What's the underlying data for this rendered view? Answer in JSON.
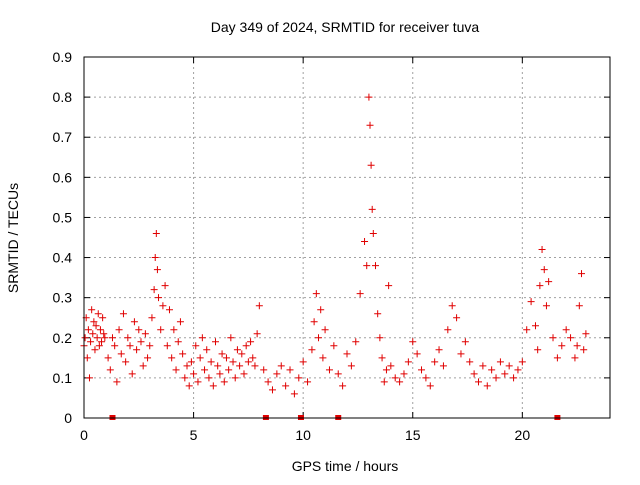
{
  "chart_data": {
    "type": "scatter",
    "title": "Day 349 of 2024, SRMTID for receiver tuva",
    "xlabel": "GPS time / hours",
    "ylabel": "SRMTID / TECUs",
    "xlim": [
      0,
      24
    ],
    "ylim": [
      0,
      0.9
    ],
    "xticks": [
      0,
      5,
      10,
      15,
      20
    ],
    "xtick_labels": [
      "0",
      "5",
      "10",
      "15",
      "20"
    ],
    "yticks": [
      0,
      0.1,
      0.2,
      0.3,
      0.4,
      0.5,
      0.6,
      0.7,
      0.8,
      0.9
    ],
    "ytick_labels": [
      "0",
      "0.1",
      "0.2",
      "0.3",
      "0.4",
      "0.5",
      "0.6",
      "0.7",
      "0.8",
      "0.9"
    ],
    "grid": true,
    "marker": "+",
    "color": "#e00000",
    "series": [
      {
        "name": "SRMTID",
        "x": [
          0.0,
          0.05,
          0.1,
          0.15,
          0.2,
          0.25,
          0.3,
          0.35,
          0.4,
          0.45,
          0.5,
          0.55,
          0.6,
          0.65,
          0.7,
          0.75,
          0.8,
          0.85,
          0.9,
          0.95,
          1.1,
          1.2,
          1.3,
          1.4,
          1.5,
          1.6,
          1.7,
          1.8,
          1.9,
          2.0,
          2.1,
          2.2,
          2.3,
          2.4,
          2.5,
          2.6,
          2.7,
          2.8,
          2.9,
          3.0,
          3.1,
          3.2,
          3.25,
          3.3,
          3.35,
          3.4,
          3.5,
          3.6,
          3.7,
          3.8,
          3.9,
          4.0,
          4.1,
          4.2,
          4.3,
          4.4,
          4.5,
          4.6,
          4.7,
          4.8,
          4.9,
          5.0,
          5.1,
          5.2,
          5.3,
          5.4,
          5.5,
          5.6,
          5.7,
          5.8,
          5.9,
          6.0,
          6.1,
          6.2,
          6.3,
          6.4,
          6.5,
          6.6,
          6.7,
          6.8,
          6.9,
          7.0,
          7.1,
          7.2,
          7.3,
          7.4,
          7.5,
          7.6,
          7.7,
          7.8,
          7.9,
          8.0,
          8.2,
          8.4,
          8.6,
          8.8,
          9.0,
          9.2,
          9.4,
          9.6,
          9.8,
          10.0,
          10.2,
          10.4,
          10.5,
          10.6,
          10.7,
          10.8,
          10.9,
          11.0,
          11.2,
          11.4,
          11.6,
          11.8,
          12.0,
          12.2,
          12.4,
          12.6,
          12.8,
          12.9,
          13.0,
          13.05,
          13.1,
          13.15,
          13.2,
          13.3,
          13.4,
          13.5,
          13.6,
          13.7,
          13.8,
          13.9,
          14.0,
          14.2,
          14.4,
          14.6,
          14.8,
          15.0,
          15.2,
          15.4,
          15.6,
          15.8,
          16.0,
          16.2,
          16.4,
          16.6,
          16.8,
          17.0,
          17.2,
          17.4,
          17.6,
          17.8,
          18.0,
          18.2,
          18.4,
          18.6,
          18.8,
          19.0,
          19.2,
          19.4,
          19.6,
          19.8,
          20.0,
          20.2,
          20.4,
          20.6,
          20.7,
          20.8,
          20.9,
          21.0,
          21.1,
          21.2,
          21.4,
          21.6,
          21.8,
          22.0,
          22.2,
          22.4,
          22.5,
          22.6,
          22.7,
          22.8,
          22.9
        ],
        "y": [
          0.18,
          0.2,
          0.25,
          0.15,
          0.22,
          0.1,
          0.19,
          0.27,
          0.21,
          0.24,
          0.17,
          0.23,
          0.2,
          0.26,
          0.18,
          0.22,
          0.19,
          0.25,
          0.21,
          0.2,
          0.15,
          0.12,
          0.2,
          0.18,
          0.09,
          0.22,
          0.16,
          0.26,
          0.14,
          0.2,
          0.18,
          0.11,
          0.24,
          0.17,
          0.22,
          0.19,
          0.13,
          0.21,
          0.15,
          0.18,
          0.25,
          0.32,
          0.4,
          0.46,
          0.37,
          0.3,
          0.22,
          0.28,
          0.33,
          0.18,
          0.27,
          0.15,
          0.22,
          0.12,
          0.19,
          0.24,
          0.16,
          0.1,
          0.13,
          0.08,
          0.14,
          0.11,
          0.18,
          0.09,
          0.15,
          0.2,
          0.12,
          0.17,
          0.1,
          0.14,
          0.08,
          0.19,
          0.13,
          0.11,
          0.16,
          0.09,
          0.15,
          0.12,
          0.2,
          0.14,
          0.1,
          0.17,
          0.13,
          0.16,
          0.11,
          0.18,
          0.14,
          0.19,
          0.15,
          0.13,
          0.21,
          0.28,
          0.12,
          0.09,
          0.07,
          0.11,
          0.13,
          0.08,
          0.12,
          0.06,
          0.1,
          0.14,
          0.09,
          0.17,
          0.24,
          0.31,
          0.2,
          0.27,
          0.15,
          0.22,
          0.12,
          0.18,
          0.11,
          0.08,
          0.16,
          0.13,
          0.19,
          0.31,
          0.44,
          0.38,
          0.8,
          0.73,
          0.63,
          0.52,
          0.46,
          0.38,
          0.26,
          0.2,
          0.15,
          0.09,
          0.12,
          0.33,
          0.13,
          0.1,
          0.09,
          0.11,
          0.14,
          0.19,
          0.16,
          0.12,
          0.1,
          0.08,
          0.14,
          0.17,
          0.13,
          0.22,
          0.28,
          0.25,
          0.16,
          0.19,
          0.14,
          0.11,
          0.09,
          0.13,
          0.08,
          0.12,
          0.1,
          0.14,
          0.11,
          0.13,
          0.1,
          0.12,
          0.14,
          0.22,
          0.29,
          0.23,
          0.17,
          0.33,
          0.42,
          0.37,
          0.28,
          0.34,
          0.2,
          0.15,
          0.18,
          0.22,
          0.2,
          0.15,
          0.18,
          0.28,
          0.36,
          0.17,
          0.21
        ]
      }
    ],
    "marked_times": [
      1.3,
      8.3,
      9.9,
      11.6,
      21.6
    ]
  }
}
